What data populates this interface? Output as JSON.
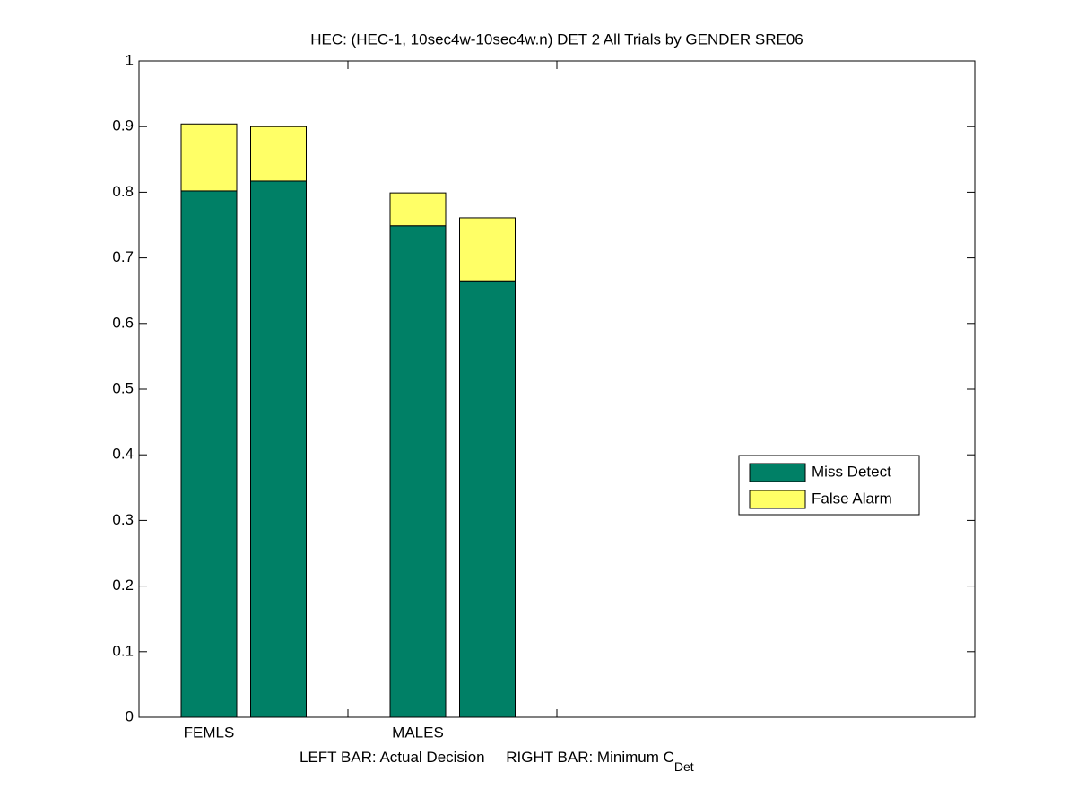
{
  "chart_data": {
    "type": "bar",
    "title": "HEC: (HEC-1, 10sec4w-10sec4w.n) DET 2 All Trials by GENDER SRE06",
    "xlabel": "LEFT BAR: Actual Decision     RIGHT BAR: Minimum C",
    "xlabel_subscript": "Det",
    "categories": [
      "FEMLS",
      null,
      "MALES",
      null
    ],
    "stacked": true,
    "series": [
      {
        "name": "Miss Detect",
        "color": "#008066",
        "values": [
          0.802,
          0.817,
          0.749,
          0.665
        ]
      },
      {
        "name": "False Alarm",
        "color": "#ffff66",
        "values": [
          0.102,
          0.083,
          0.05,
          0.096
        ]
      }
    ],
    "ylim": [
      0,
      1
    ],
    "yticks": [
      0,
      0.1,
      0.2,
      0.3,
      0.4,
      0.5,
      0.6,
      0.7,
      0.8,
      0.9,
      1
    ],
    "legend": "right"
  }
}
